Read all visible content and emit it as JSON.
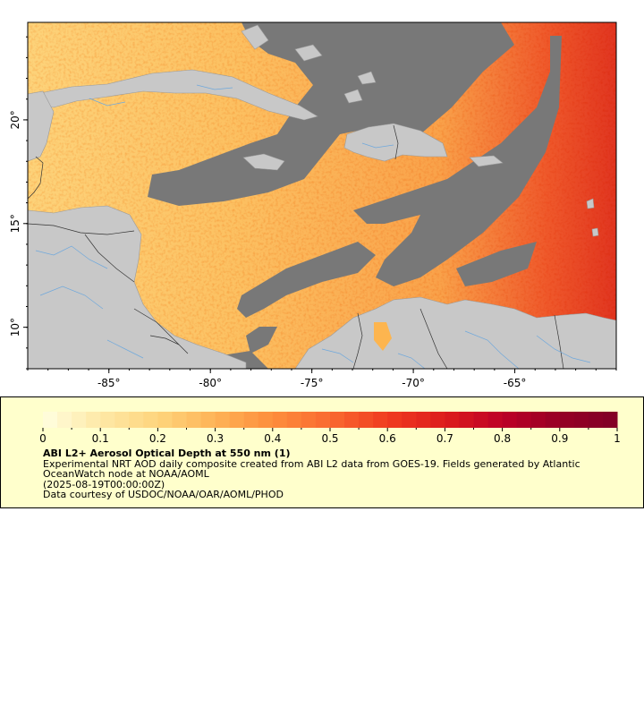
{
  "map": {
    "bounds": {
      "lon_min": -89,
      "lon_max": -60,
      "lat_min": 8,
      "lat_max": 24.7
    },
    "lon_ticks": [
      {
        "value": -85,
        "label": "-85°"
      },
      {
        "value": -80,
        "label": "-80°"
      },
      {
        "value": -75,
        "label": "-75°"
      },
      {
        "value": -70,
        "label": "-70°"
      },
      {
        "value": -65,
        "label": "-65°"
      }
    ],
    "lat_ticks": [
      {
        "value": 10,
        "label": "10°"
      },
      {
        "value": 15,
        "label": "15°"
      },
      {
        "value": 20,
        "label": "20°"
      }
    ],
    "colors": {
      "land": "#c8c8c8",
      "no_data": "#787878",
      "rivers": "#6fa8dc",
      "borders": "#333333",
      "coast": "#9a9a9a"
    }
  },
  "legend": {
    "colorbar": {
      "min": 0,
      "max": 1,
      "tick_labels": [
        "0",
        "0.1",
        "0.2",
        "0.3",
        "0.4",
        "0.5",
        "0.6",
        "0.7",
        "0.8",
        "0.9",
        "1"
      ],
      "colors": [
        "#ffffe0",
        "#fee8a6",
        "#fed57d",
        "#feb356",
        "#fd8d3c",
        "#f96a30",
        "#f03b20",
        "#dd1c1c",
        "#bd0026",
        "#960025",
        "#800026"
      ]
    },
    "title": "ABI L2+ Aerosol Optical Depth at 550 nm (1)",
    "description": "Experimental NRT AOD daily composite created from ABI L2 data from GOES-19. Fields generated by Atlantic OceanWatch node at NOAA/AOML",
    "date": "(2025-08-19T00:00:00Z)",
    "credit": "Data courtesy of USDOC/NOAA/OAR/AOML/PHOD"
  }
}
